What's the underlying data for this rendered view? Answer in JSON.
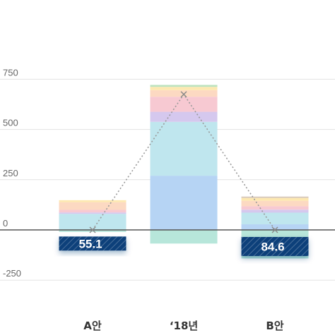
{
  "chart_data": {
    "type": "bar",
    "stacked": true,
    "categories": [
      "A안",
      "‘18년",
      "B안"
    ],
    "y_ticks": [
      750,
      500,
      250,
      0,
      -250
    ],
    "ylim": [
      -250,
      750
    ],
    "grid": true,
    "segments": [
      [
        {
          "value": 80,
          "color": "#bfe6ee"
        },
        {
          "value": 7,
          "color": "#d5c8ee"
        },
        {
          "value": 13,
          "color": "#f7c9d2"
        },
        {
          "value": 38,
          "color": "#fcd9c2"
        },
        {
          "value": 10,
          "color": "#fde8b0"
        }
      ],
      [
        {
          "value": 270,
          "color": "#b6d4f4"
        },
        {
          "value": 268,
          "color": "#bfe6ee"
        },
        {
          "value": 50,
          "color": "#d5c8ee"
        },
        {
          "value": 75,
          "color": "#f7c9d2"
        },
        {
          "value": 33,
          "color": "#fcd9c2"
        },
        {
          "value": 16,
          "color": "#fde8b0"
        },
        {
          "value": 10,
          "color": "#bfe3bf"
        }
      ],
      [
        {
          "value": 28,
          "color": "#b6d4f4"
        },
        {
          "value": 58,
          "color": "#bfe6ee"
        },
        {
          "value": 15,
          "color": "#d5c8ee"
        },
        {
          "value": 17,
          "color": "#f7c9d2"
        },
        {
          "value": 27,
          "color": "#fcd9c2"
        },
        {
          "value": 14,
          "color": "#fde8b0"
        },
        {
          "value": 7,
          "color": "#d9c9b8"
        }
      ]
    ],
    "negative_values": [
      -10,
      -68,
      -142
    ],
    "negative_color": "#b7e6da",
    "line_values": [
      0,
      675,
      0
    ],
    "badges": [
      {
        "label": "55.1",
        "category_index": 0,
        "top": -33,
        "bottom": -103
      },
      {
        "label": "84.6",
        "category_index": 2,
        "top": -35,
        "bottom": -130
      }
    ],
    "badge_color": "#0f3f7a",
    "axis_color": "#555555",
    "grid_color": "#e3e3e3",
    "line_color": "#9a9a9a"
  }
}
